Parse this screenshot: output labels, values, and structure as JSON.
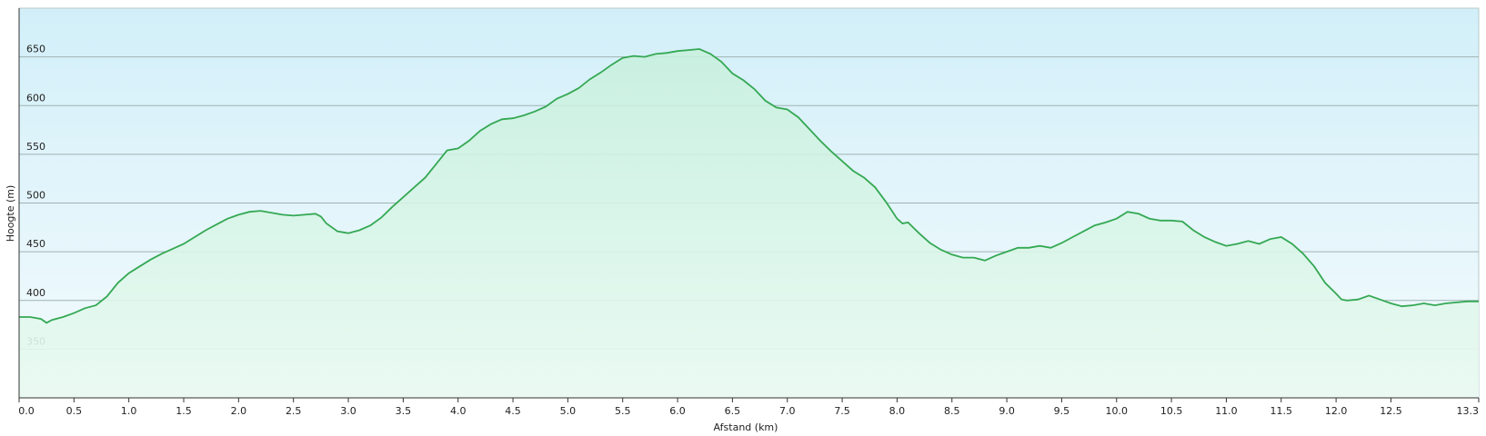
{
  "chart_data": {
    "type": "area",
    "x_label": "Afstand  (km)",
    "y_label": "Hoogte (m)",
    "xlim": [
      0,
      13.3
    ],
    "ylim": [
      300,
      700
    ],
    "xticks": [
      {
        "value": 0,
        "label": "0.0"
      },
      0.5,
      {
        "value": 1,
        "label": "1.0"
      },
      1.5,
      {
        "value": 2,
        "label": "2.0"
      },
      2.5,
      {
        "value": 3,
        "label": "3.0"
      },
      3.5,
      {
        "value": 4,
        "label": "4.0"
      },
      4.5,
      {
        "value": 5,
        "label": "5.0"
      },
      5.5,
      {
        "value": 6,
        "label": "6.0"
      },
      6.5,
      {
        "value": 7,
        "label": "7.0"
      },
      7.5,
      {
        "value": 8,
        "label": "8.0"
      },
      8.5,
      {
        "value": 9,
        "label": "9.0"
      },
      9.5,
      {
        "value": 10,
        "label": "10.0"
      },
      10.5,
      {
        "value": 11,
        "label": "11.0"
      },
      11.5,
      {
        "value": 12,
        "label": "12.0"
      },
      12.5,
      13.3
    ],
    "yticks": [
      350,
      400,
      450,
      500,
      550,
      600,
      650
    ],
    "grid": true,
    "color": "#34a853",
    "x": [
      0,
      0.1,
      0.2,
      0.25,
      0.3,
      0.4,
      0.5,
      0.6,
      0.7,
      0.8,
      0.9,
      1.0,
      1.1,
      1.2,
      1.3,
      1.4,
      1.5,
      1.6,
      1.7,
      1.8,
      1.9,
      2.0,
      2.1,
      2.2,
      2.3,
      2.4,
      2.5,
      2.6,
      2.7,
      2.75,
      2.8,
      2.9,
      3.0,
      3.1,
      3.2,
      3.3,
      3.4,
      3.5,
      3.6,
      3.7,
      3.8,
      3.9,
      4.0,
      4.1,
      4.2,
      4.3,
      4.4,
      4.5,
      4.6,
      4.7,
      4.8,
      4.9,
      5.0,
      5.1,
      5.2,
      5.3,
      5.4,
      5.5,
      5.6,
      5.7,
      5.8,
      5.9,
      6.0,
      6.1,
      6.2,
      6.3,
      6.4,
      6.5,
      6.6,
      6.7,
      6.8,
      6.9,
      7.0,
      7.1,
      7.2,
      7.3,
      7.4,
      7.5,
      7.6,
      7.7,
      7.8,
      7.9,
      8.0,
      8.05,
      8.1,
      8.2,
      8.3,
      8.4,
      8.5,
      8.6,
      8.7,
      8.8,
      8.9,
      9.0,
      9.1,
      9.2,
      9.3,
      9.4,
      9.5,
      9.6,
      9.7,
      9.8,
      9.9,
      10.0,
      10.1,
      10.2,
      10.3,
      10.4,
      10.5,
      10.6,
      10.7,
      10.8,
      10.9,
      11.0,
      11.1,
      11.2,
      11.3,
      11.4,
      11.5,
      11.6,
      11.7,
      11.8,
      11.9,
      12.0,
      12.05,
      12.1,
      12.2,
      12.3,
      12.4,
      12.5,
      12.6,
      12.7,
      12.8,
      12.9,
      13.0,
      13.1,
      13.2,
      13.3
    ],
    "values": [
      383,
      383,
      381,
      377,
      380,
      383,
      387,
      392,
      395,
      404,
      418,
      428,
      435,
      442,
      448,
      453,
      458,
      465,
      472,
      478,
      484,
      488,
      491,
      492,
      490,
      488,
      487,
      488,
      489,
      486,
      479,
      471,
      469,
      472,
      477,
      485,
      496,
      506,
      516,
      526,
      540,
      554,
      556,
      564,
      574,
      581,
      586,
      587,
      590,
      594,
      599,
      607,
      612,
      618,
      627,
      634,
      642,
      649,
      651,
      650,
      653,
      654,
      656,
      657,
      658,
      653,
      645,
      633,
      626,
      617,
      605,
      598,
      596,
      588,
      576,
      564,
      553,
      543,
      533,
      526,
      516,
      501,
      484,
      479,
      480,
      469,
      459,
      452,
      447,
      444,
      444,
      441,
      446,
      450,
      454,
      454,
      456,
      454,
      459,
      465,
      471,
      477,
      480,
      484,
      491,
      489,
      484,
      482,
      482,
      481,
      472,
      465,
      460,
      456,
      458,
      461,
      458,
      463,
      465,
      458,
      448,
      435,
      418,
      407,
      401,
      400,
      401,
      405,
      401,
      397,
      394,
      395,
      397,
      395,
      397,
      398,
      399,
      399
    ]
  }
}
